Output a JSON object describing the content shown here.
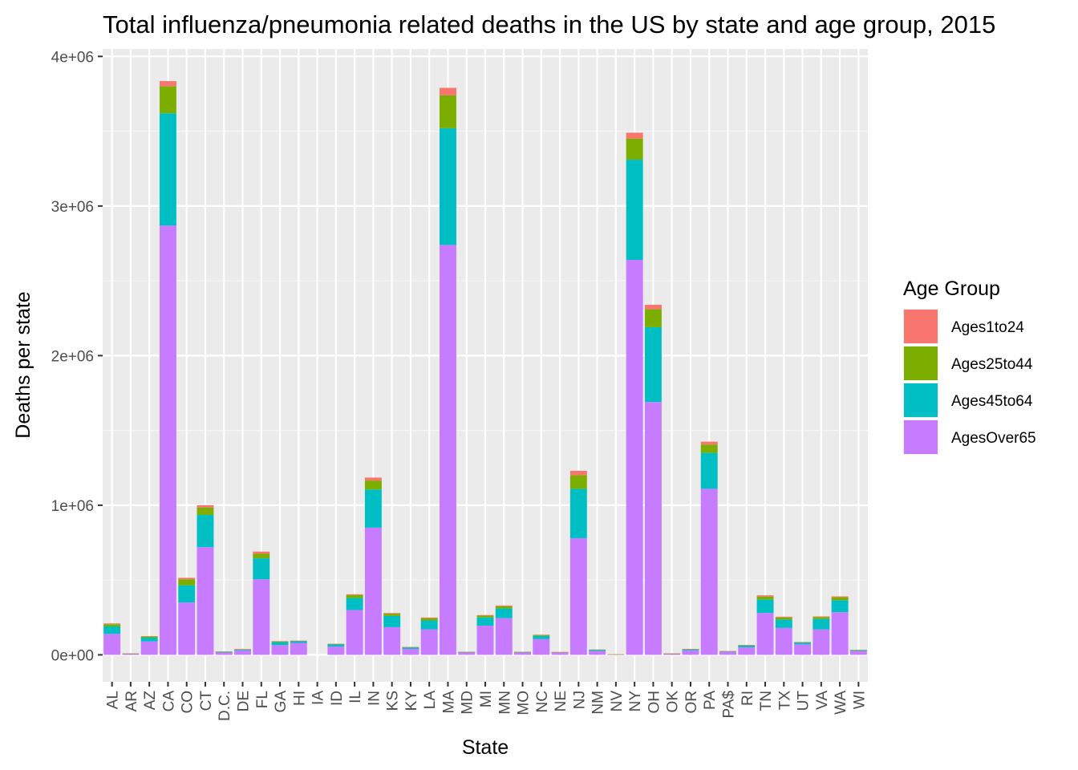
{
  "chart_data": {
    "type": "bar",
    "stacked": true,
    "title": "Total influenza/pneumonia related deaths in the US by state and age group, 2015",
    "xlabel": "State",
    "ylabel": "Deaths per state",
    "ylim": [
      -180000,
      4050000
    ],
    "yticks": [
      0,
      1000000,
      2000000,
      3000000,
      4000000
    ],
    "ytick_labels": [
      "0e+00",
      "1e+06",
      "2e+06",
      "3e+06",
      "4e+06"
    ],
    "grid": true,
    "legend_position": "right",
    "legend_title": "Age Group",
    "categories": [
      "AL",
      "AR",
      "AZ",
      "CA",
      "CO",
      "CT",
      "D.C.",
      "DE",
      "FL",
      "GA",
      "HI",
      "IA",
      "ID",
      "IL",
      "IN",
      "KS",
      "KY",
      "LA",
      "MA",
      "MD",
      "MI",
      "MN",
      "MO",
      "NC",
      "NE",
      "NJ",
      "NM",
      "NV",
      "NY",
      "OH",
      "OK",
      "OR",
      "PA",
      "PA$",
      "RI",
      "TN",
      "TX",
      "UT",
      "VA",
      "WA",
      "WI"
    ],
    "series": [
      {
        "name": "AgesOver65",
        "color": "#C77CFF",
        "values": [
          140000,
          5000,
          90000,
          2870000,
          350000,
          720000,
          15000,
          30000,
          505000,
          65000,
          80000,
          0,
          55000,
          300000,
          850000,
          185000,
          40000,
          170000,
          2740000,
          15000,
          195000,
          245000,
          15000,
          105000,
          15000,
          780000,
          25000,
          2000,
          2640000,
          1690000,
          5000,
          30000,
          1110000,
          20000,
          50000,
          280000,
          180000,
          70000,
          170000,
          285000,
          25000
        ]
      },
      {
        "name": "Ages45to64",
        "color": "#00BFC4",
        "values": [
          50000,
          3000,
          25000,
          750000,
          115000,
          215000,
          5000,
          6000,
          140000,
          20000,
          12000,
          0,
          15000,
          80000,
          255000,
          75000,
          10000,
          60000,
          780000,
          4000,
          55000,
          65000,
          4000,
          22000,
          3000,
          330000,
          8000,
          1000,
          670000,
          500000,
          3000,
          7000,
          240000,
          4000,
          12000,
          90000,
          55000,
          12000,
          70000,
          80000,
          6000
        ]
      },
      {
        "name": "Ages25to44",
        "color": "#7CAE00",
        "values": [
          15000,
          1000,
          8000,
          180000,
          40000,
          50000,
          2000,
          2000,
          30000,
          5000,
          2000,
          0,
          3000,
          20000,
          60000,
          15000,
          2000,
          15000,
          220000,
          1000,
          12000,
          15000,
          1000,
          6000,
          1000,
          90000,
          2000,
          500,
          140000,
          120000,
          1000,
          2000,
          55000,
          1000,
          3000,
          20000,
          15000,
          3000,
          13000,
          20000,
          2000
        ]
      },
      {
        "name": "Ages1to24",
        "color": "#F8766D",
        "values": [
          5000,
          500,
          2000,
          35000,
          10000,
          15000,
          500,
          500,
          15000,
          2000,
          1000,
          0,
          1000,
          5000,
          20000,
          5000,
          500,
          5000,
          50000,
          500,
          4000,
          5000,
          500,
          2000,
          500,
          30000,
          500,
          200,
          40000,
          30000,
          500,
          500,
          20000,
          500,
          1000,
          8000,
          5000,
          1000,
          4000,
          6000,
          500
        ]
      }
    ]
  }
}
